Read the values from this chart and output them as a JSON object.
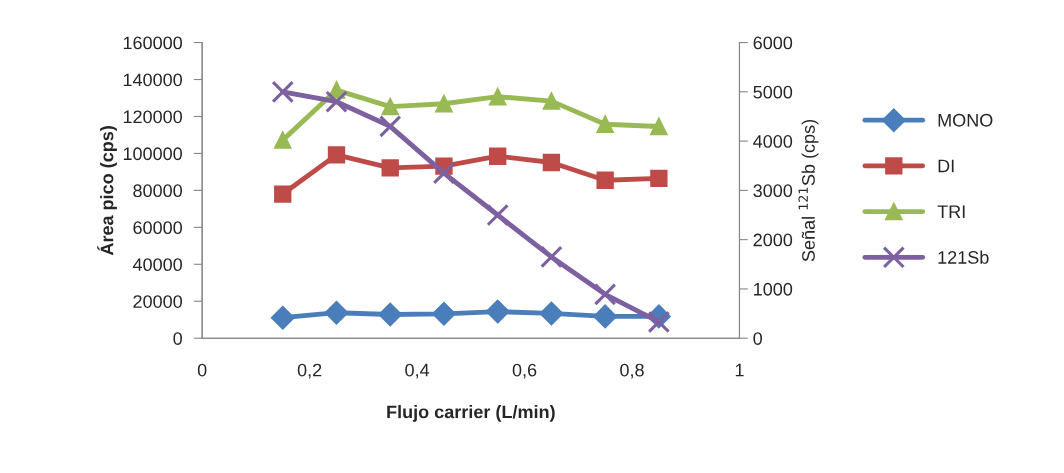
{
  "chart_data": {
    "type": "line",
    "xlabel": "Flujo carrier (L/min)",
    "ylabel": "Área pico (cps)",
    "y2label": "Señal $^{121}$Sb (cps)",
    "x": [
      0.15,
      0.25,
      0.35,
      0.45,
      0.55,
      0.65,
      0.75,
      0.85
    ],
    "xlim": [
      0,
      1
    ],
    "xticks": [
      0,
      {
        "value": 0.2,
        "label": "0,2"
      },
      {
        "value": 0.4,
        "label": "0,4"
      },
      {
        "value": 0.6,
        "label": "0,6"
      },
      {
        "value": 0.8,
        "label": "0,8"
      },
      1
    ],
    "ylim": [
      0,
      160000
    ],
    "yticks": [
      0,
      20000,
      40000,
      60000,
      80000,
      100000,
      120000,
      140000,
      160000
    ],
    "y2lim": [
      0,
      6000
    ],
    "y2ticks": [
      0,
      1000,
      2000,
      3000,
      4000,
      5000,
      6000
    ],
    "grid": false,
    "legend": "right",
    "series": [
      {
        "name": "MONO",
        "color": "#4a7ebb",
        "marker": "diamond",
        "values": [
          11100,
          13800,
          12800,
          13200,
          14400,
          13400,
          11800,
          11800
        ]
      },
      {
        "name": "DI",
        "color": "#be4b48",
        "marker": "square",
        "values": [
          78000,
          99200,
          92200,
          93100,
          98500,
          95100,
          85500,
          86500
        ]
      },
      {
        "name": "TRI",
        "color": "#98b954",
        "marker": "triangle",
        "values": [
          107200,
          134300,
          125300,
          126900,
          130700,
          128300,
          115800,
          114600
        ]
      },
      {
        "name": "121Sb",
        "color": "#7d60a0",
        "marker": "cross",
        "axis": "y2",
        "values": [
          5000,
          4800,
          4300,
          3350,
          2500,
          1650,
          890,
          330
        ]
      }
    ]
  }
}
